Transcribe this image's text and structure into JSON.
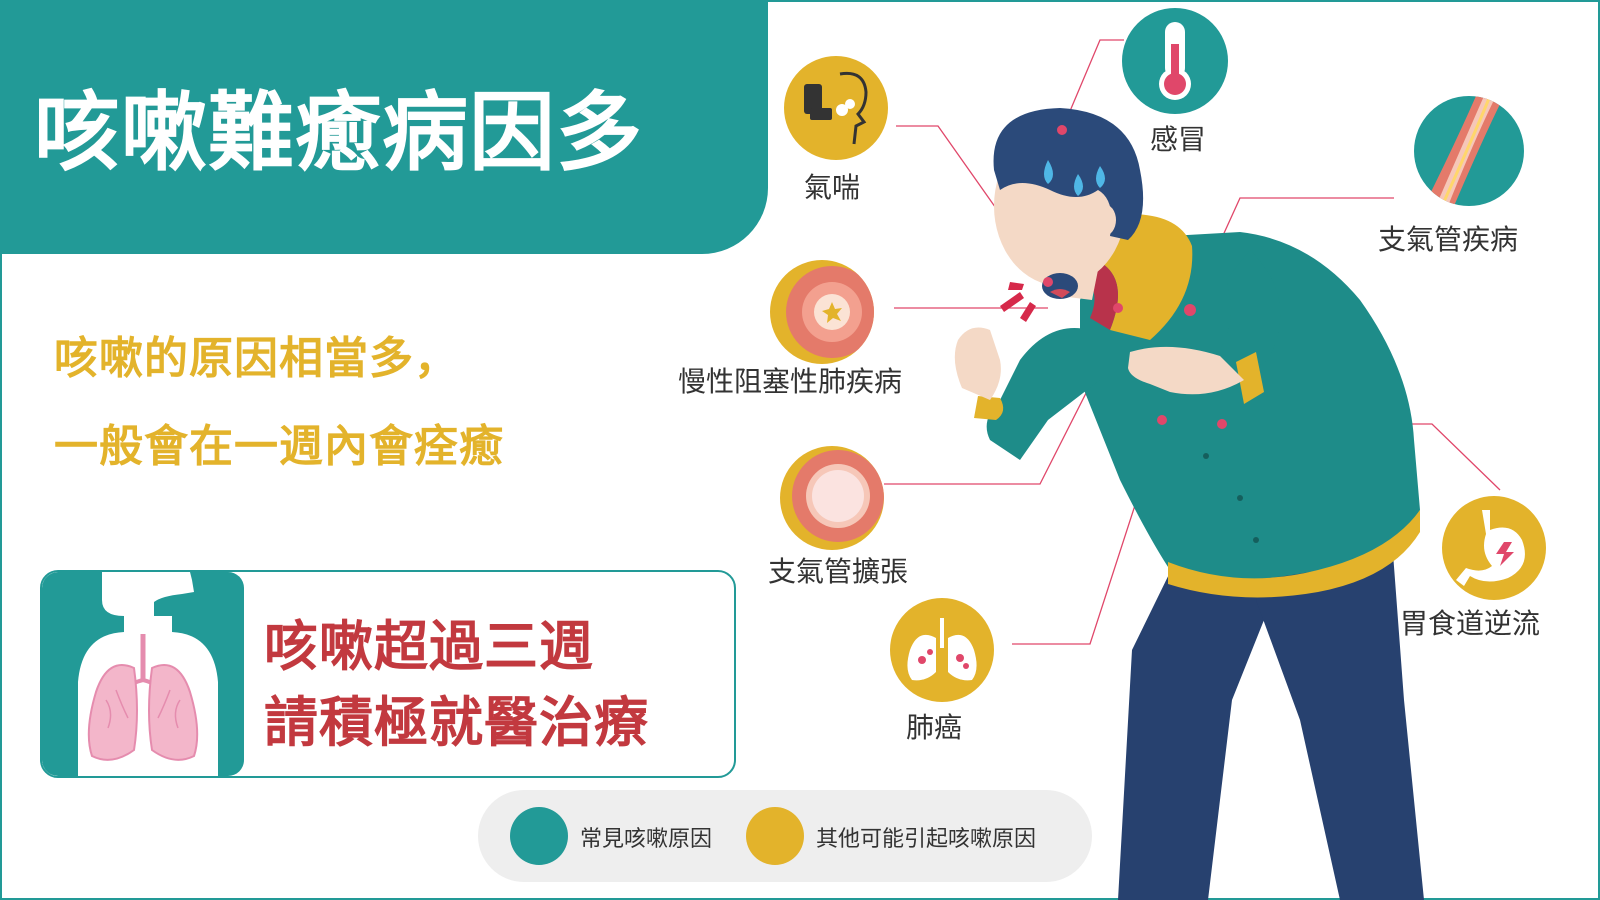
{
  "header": {
    "title": "咳嗽難癒病因多"
  },
  "intro": {
    "line1": "咳嗽的原因相當多，",
    "line2": "一般會在一週內會痊癒"
  },
  "warning": {
    "line1": "咳嗽超過三週",
    "line2": "請積極就醫治療"
  },
  "causes": [
    {
      "label": "氣喘",
      "type": "other",
      "icon": "inhaler-icon"
    },
    {
      "label": "感冒",
      "type": "common",
      "icon": "thermometer-icon"
    },
    {
      "label": "支氣管疾病",
      "type": "common",
      "icon": "bronchus-icon"
    },
    {
      "label": "慢性阻塞性肺疾病",
      "type": "other",
      "icon": "airway-icon"
    },
    {
      "label": "支氣管擴張",
      "type": "other",
      "icon": "dilated-airway-icon"
    },
    {
      "label": "胃食道逆流",
      "type": "other",
      "icon": "stomach-icon"
    },
    {
      "label": "肺癌",
      "type": "other",
      "icon": "lungs-icon"
    }
  ],
  "legend": [
    {
      "label": "常見咳嗽原因",
      "color": "#229a97"
    },
    {
      "label": "其他可能引起咳嗽原因",
      "color": "#e3b32b"
    }
  ],
  "colors": {
    "teal": "#229a97",
    "yellow": "#e3b32b",
    "red": "#c2393f",
    "pink_line": "#e0476a"
  }
}
